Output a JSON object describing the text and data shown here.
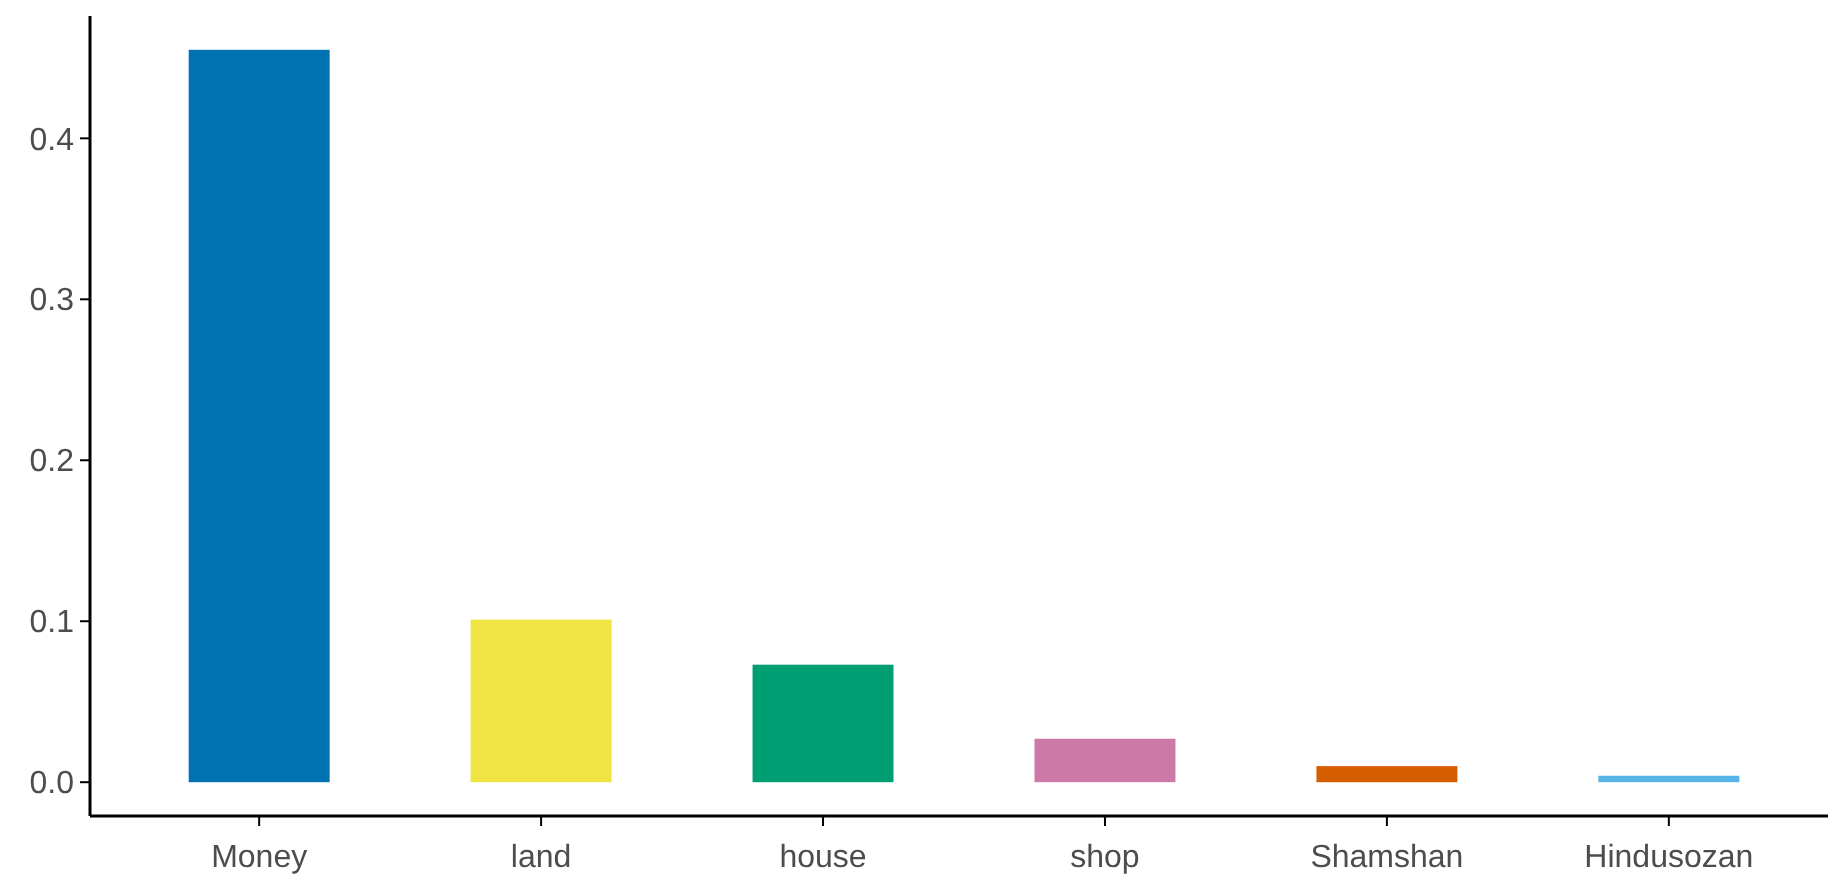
{
  "chart_data": {
    "type": "bar",
    "categories": [
      "Money",
      "land",
      "house",
      "shop",
      "Shamshan",
      "Hindusozan"
    ],
    "values": [
      0.455,
      0.101,
      0.073,
      0.027,
      0.01,
      0.004
    ],
    "colors": [
      "#0072b2",
      "#f0e442",
      "#009e73",
      "#cc79a7",
      "#d55e00",
      "#56b4e9"
    ],
    "ylim": [
      -0.021,
      0.476
    ],
    "yticks": [
      {
        "value": 0,
        "label": "0.0"
      },
      0.1,
      0.2,
      0.3,
      0.4
    ],
    "grid": false
  }
}
